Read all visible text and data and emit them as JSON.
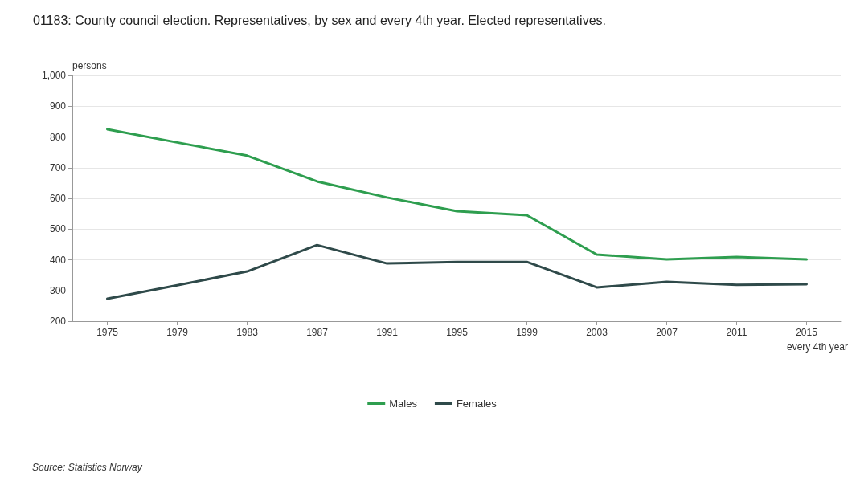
{
  "chart_data": {
    "type": "line",
    "title": "01183: County council election. Representatives, by sex and every 4th year. Elected representatives.",
    "ylabel": "persons",
    "xlabel": "every 4th year",
    "categories": [
      "1975",
      "1979",
      "1983",
      "1987",
      "1991",
      "1995",
      "1999",
      "2003",
      "2007",
      "2011",
      "2015"
    ],
    "series": [
      {
        "name": "Males",
        "color": "#2e9e4f",
        "values": [
          825,
          782,
          739,
          655,
          603,
          558,
          545,
          417,
          401,
          409,
          401
        ]
      },
      {
        "name": "Females",
        "color": "#2f4a4a",
        "values": [
          273,
          317,
          362,
          448,
          388,
          393,
          393,
          310,
          328,
          318,
          320
        ]
      }
    ],
    "ylim": [
      200,
      1000
    ],
    "yticks": [
      200,
      300,
      400,
      500,
      600,
      700,
      800,
      900,
      {
        "value": 1000,
        "label": "1,000"
      }
    ],
    "grid": "y",
    "legend": "bottom",
    "marker": "none",
    "line_style": "solid",
    "annotations": [
      "Source: Statistics Norway"
    ]
  }
}
